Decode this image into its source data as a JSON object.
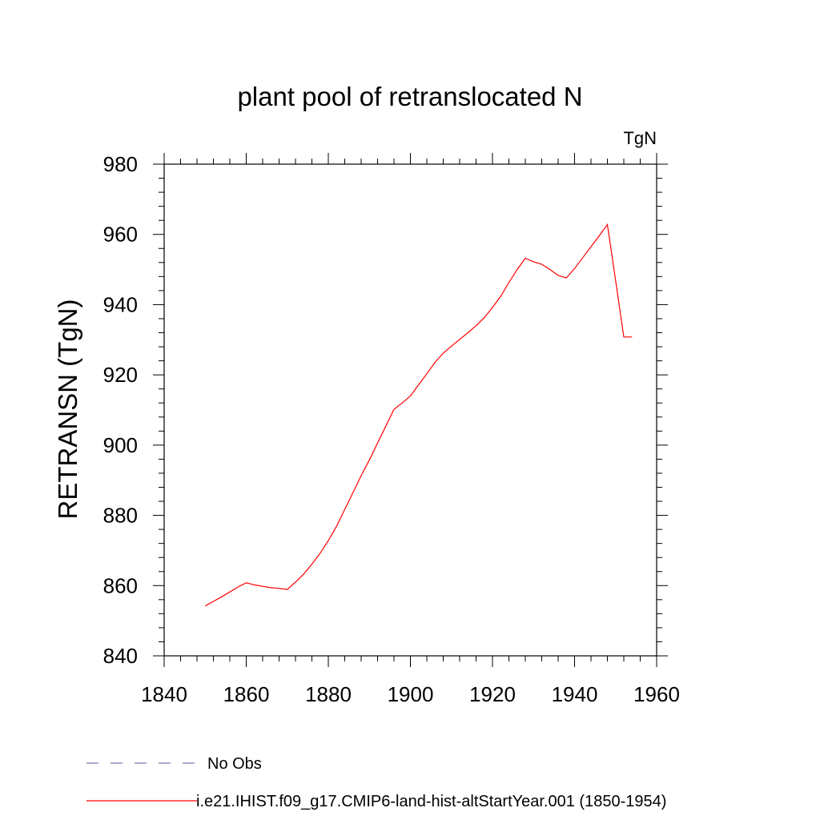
{
  "chart_data": {
    "type": "line",
    "title": "plant pool of retranslocated N",
    "units_label": "TgN",
    "ylabel": "RETRANSN  (TgN)",
    "xlabel": "",
    "xlim": [
      1840,
      1960
    ],
    "ylim": [
      840,
      980
    ],
    "xticks": [
      1840,
      1860,
      1880,
      1900,
      1920,
      1940,
      1960
    ],
    "yticks": [
      840,
      860,
      880,
      900,
      920,
      940,
      960,
      980
    ],
    "grid": false,
    "legend_position": "bottom-left",
    "series": [
      {
        "name": "i.e21.IHIST.f09_g17.CMIP6-land-hist-altStartYear.001 (1850-1954)",
        "color": "#ff0000",
        "style": "solid",
        "x": [
          1850,
          1852,
          1854,
          1856,
          1858,
          1860,
          1862,
          1864,
          1866,
          1868,
          1870,
          1872,
          1874,
          1876,
          1878,
          1880,
          1882,
          1884,
          1886,
          1888,
          1890,
          1892,
          1894,
          1896,
          1898,
          1900,
          1902,
          1904,
          1906,
          1908,
          1910,
          1912,
          1914,
          1916,
          1918,
          1920,
          1922,
          1924,
          1926,
          1928,
          1930,
          1932,
          1934,
          1936,
          1938,
          1940,
          1942,
          1944,
          1946,
          1948,
          1950,
          1952,
          1954
        ],
        "y": [
          854.2,
          855.5,
          856.8,
          858.2,
          859.6,
          860.8,
          860.2,
          859.8,
          859.4,
          859.2,
          858.9,
          861.0,
          863.3,
          866.1,
          869.2,
          872.8,
          876.9,
          881.7,
          886.5,
          891.3,
          895.8,
          900.6,
          905.4,
          910.2,
          912.0,
          914.0,
          917.2,
          920.3,
          923.6,
          926.2,
          928.2,
          930.1,
          932.0,
          934.0,
          936.3,
          939.2,
          942.4,
          946.3,
          950.0,
          953.2,
          952.2,
          951.5,
          950.0,
          948.3,
          947.6,
          950.3,
          953.4,
          956.5,
          959.6,
          962.8,
          946.8,
          930.8,
          930.8
        ],
        "x_actual_end": 1954
      },
      {
        "name": "No Obs",
        "color": "#7a6fb0",
        "style": "dashed",
        "x": [],
        "y": []
      }
    ]
  }
}
